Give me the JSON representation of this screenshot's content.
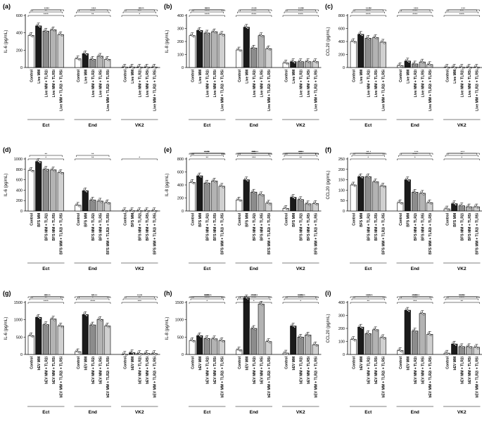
{
  "colors": {
    "control": "#ffffff",
    "mm": "#1a1a1a",
    "tlr2": "#8c8c8c",
    "tlr5": "#b3b3b3",
    "tlr25": "#d0d0d0",
    "line": "#000000"
  },
  "chart_data": [
    {
      "type": "bar",
      "panel_label": "(a)",
      "ylabel": "IL-6 (pg/mL)",
      "ylim": [
        0,
        600
      ],
      "yticks": [
        0,
        200,
        400,
        600
      ],
      "categories": [
        "Control",
        "Live MM",
        "Live MM + TLR2i",
        "Live MM + TLR5i",
        "Live MM + TLR2i + TLR5i"
      ],
      "groups": [
        {
          "name": "Ect",
          "values": [
            370,
            480,
            420,
            435,
            380
          ]
        },
        {
          "name": "End",
          "values": [
            100,
            160,
            95,
            130,
            95
          ]
        },
        {
          "name": "VK2",
          "values": [
            5,
            5,
            5,
            5,
            5
          ]
        }
      ],
      "annotations": [
        "****",
        "**",
        "*",
        "**",
        "****",
        "***",
        "***",
        "**",
        "**",
        "**",
        "**",
        "****"
      ]
    },
    {
      "type": "bar",
      "panel_label": "(b)",
      "ylabel": "IL-8 (pg/mL)",
      "ylim": [
        0,
        400
      ],
      "yticks": [
        0,
        100,
        200,
        300,
        400
      ],
      "categories": [
        "Control",
        "Live MM",
        "Live MM + TLR2i",
        "Live MM + TLR5i",
        "Live MM + TLR2i + TLR5i"
      ],
      "groups": [
        {
          "name": "Ect",
          "values": [
            245,
            285,
            265,
            275,
            255
          ]
        },
        {
          "name": "End",
          "values": [
            135,
            310,
            150,
            245,
            145
          ]
        },
        {
          "name": "VK2",
          "values": [
            35,
            45,
            45,
            45,
            45
          ]
        }
      ],
      "annotations": [
        "****",
        "****",
        "****",
        "****",
        "****",
        "****",
        "****",
        "****",
        "****",
        "*",
        "*",
        "**",
        "**"
      ]
    },
    {
      "type": "bar",
      "panel_label": "(c)",
      "ylabel": "CCL20 (pg/mL)",
      "ylim": [
        0,
        800
      ],
      "yticks": [
        0,
        200,
        400,
        600,
        800
      ],
      "categories": [
        "Control",
        "Live MM",
        "Live MM + TLR2i",
        "Live MM + TLR5i",
        "Live MM + TLR2i + TLR5i"
      ],
      "groups": [
        {
          "name": "Ect",
          "values": [
            400,
            510,
            450,
            460,
            390
          ]
        },
        {
          "name": "End",
          "values": [
            30,
            100,
            55,
            85,
            45
          ]
        },
        {
          "name": "VK2",
          "values": [
            5,
            5,
            5,
            5,
            5
          ]
        }
      ],
      "annotations": [
        "****",
        "****",
        "****",
        "****",
        "****",
        "***",
        "****",
        "**",
        "*",
        "**",
        "**",
        "**"
      ]
    },
    {
      "type": "bar",
      "panel_label": "(d)",
      "ylabel": "IL-6 (pg/mL)",
      "ylim": [
        0,
        1000
      ],
      "yticks": [
        0,
        200,
        400,
        600,
        800,
        1000
      ],
      "categories": [
        "Control",
        "BFS MM",
        "BFS MM + TLR2i",
        "BFS MM + TLR5i",
        "BFS MM + TLR2i + TLR5i"
      ],
      "groups": [
        {
          "name": "Ect",
          "values": [
            780,
            950,
            800,
            790,
            740
          ]
        },
        {
          "name": "End",
          "values": [
            110,
            390,
            210,
            190,
            160
          ]
        },
        {
          "name": "VK2",
          "values": [
            5,
            5,
            5,
            5,
            5
          ]
        }
      ],
      "annotations": [
        "*",
        "**",
        "*",
        "**",
        "**"
      ]
    },
    {
      "type": "bar",
      "panel_label": "(e)",
      "ylabel": "IL-8 (pg/mL)",
      "ylim": [
        0,
        800
      ],
      "yticks": [
        0,
        200,
        400,
        600,
        800
      ],
      "categories": [
        "Control",
        "BFS MM",
        "BFS MM + TLR2i",
        "BFS MM + TLR5i",
        "BFS MM + TLR2i + TLR5i"
      ],
      "groups": [
        {
          "name": "Ect",
          "values": [
            440,
            540,
            430,
            460,
            380
          ]
        },
        {
          "name": "End",
          "values": [
            170,
            480,
            290,
            250,
            120
          ]
        },
        {
          "name": "VK2",
          "values": [
            40,
            210,
            175,
            110,
            115
          ]
        }
      ],
      "annotations": [
        "**",
        "***",
        "**",
        "*",
        "****",
        "***",
        "***",
        "***",
        "**",
        "*",
        "****",
        "**",
        "****",
        "**",
        "**",
        "****",
        "***",
        "***",
        "*",
        "*",
        "*",
        "*"
      ]
    },
    {
      "type": "bar",
      "panel_label": "(f)",
      "ylabel": "CCL20 (pg/mL)",
      "ylim": [
        0,
        250
      ],
      "yticks": [
        0,
        50,
        100,
        150,
        200,
        250
      ],
      "categories": [
        "Control",
        "BFS MM",
        "BFS MM + TLR2i",
        "BFS MM + TLR5i",
        "BFS MM + TLR2i + TLR5i"
      ],
      "groups": [
        {
          "name": "Ect",
          "values": [
            125,
            165,
            165,
            140,
            120
          ]
        },
        {
          "name": "End",
          "values": [
            40,
            150,
            90,
            85,
            40
          ]
        },
        {
          "name": "VK2",
          "values": [
            10,
            35,
            25,
            20,
            20
          ]
        }
      ],
      "annotations": [
        "*",
        "*",
        "*",
        "****",
        "****",
        "**",
        "*",
        "*",
        "**",
        "*",
        "**",
        "*",
        "**"
      ]
    },
    {
      "type": "bar",
      "panel_label": "(g)",
      "ylabel": "IL-6 (pg/mL)",
      "ylim": [
        0,
        1500
      ],
      "yticks": [
        0,
        500,
        1000,
        1500
      ],
      "categories": [
        "Control",
        "bEV MM",
        "bEV MM + TLR2i",
        "bEV MM + TLR5i",
        "bEV MM + TLR2i + TLR5i"
      ],
      "groups": [
        {
          "name": "Ect",
          "values": [
            540,
            1070,
            860,
            1020,
            820
          ]
        },
        {
          "name": "End",
          "values": [
            80,
            1150,
            850,
            1010,
            820
          ]
        },
        {
          "name": "VK2",
          "values": [
            5,
            50,
            25,
            30,
            25
          ]
        }
      ],
      "annotations": [
        "****",
        "****",
        "***",
        "**",
        "*",
        "**",
        "**",
        "**",
        "****",
        "****",
        "****",
        "*",
        "**",
        "*"
      ]
    },
    {
      "type": "bar",
      "panel_label": "(h)",
      "ylabel": "IL-8 (pg/mL)",
      "ylim": [
        0,
        1500
      ],
      "yticks": [
        0,
        500,
        1000,
        1500
      ],
      "categories": [
        "Control",
        "bEV MM",
        "bEV MM + TLR2i",
        "bEV MM + TLR5i",
        "bEV MM + TLR2i + TLR5i"
      ],
      "groups": [
        {
          "name": "Ect",
          "values": [
            400,
            540,
            460,
            450,
            400
          ]
        },
        {
          "name": "End",
          "values": [
            130,
            1630,
            750,
            1450,
            370
          ]
        },
        {
          "name": "VK2",
          "values": [
            40,
            820,
            500,
            560,
            280
          ]
        }
      ],
      "annotations": [
        "*",
        "*",
        "*",
        "****",
        "****",
        "****",
        "****",
        "****",
        "****",
        "****",
        "***",
        "****",
        "****",
        "****",
        "****",
        "***"
      ]
    },
    {
      "type": "bar",
      "panel_label": "(i)",
      "ylabel": "CCL20 (pg/mL)",
      "ylim": [
        0,
        400
      ],
      "yticks": [
        0,
        100,
        200,
        300,
        400
      ],
      "categories": [
        "Control",
        "bEV MM",
        "bEV MM + TLR2i",
        "bEV MM + TLR5i",
        "bEV MM + TLR2i + TLR5i"
      ],
      "groups": [
        {
          "name": "Ect",
          "values": [
            115,
            210,
            160,
            190,
            130
          ]
        },
        {
          "name": "End",
          "values": [
            30,
            340,
            180,
            315,
            155
          ]
        },
        {
          "name": "VK2",
          "values": [
            10,
            80,
            60,
            60,
            55
          ]
        }
      ],
      "annotations": [
        "**",
        "***",
        "**",
        "*",
        "****",
        "****",
        "****",
        "****",
        "****",
        "****",
        "****",
        "**",
        "*",
        "****",
        "****"
      ]
    }
  ]
}
